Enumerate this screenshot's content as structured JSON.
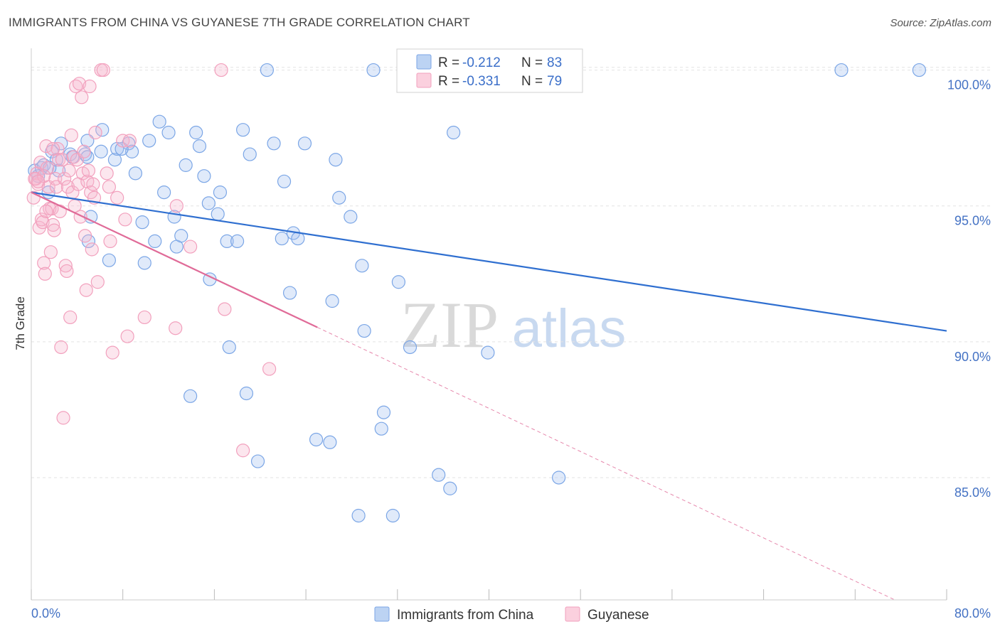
{
  "title": "IMMIGRANTS FROM CHINA VS GUYANESE 7TH GRADE CORRELATION CHART",
  "source": "Source: ZipAtlas.com",
  "watermark": {
    "zip": "ZIP",
    "atlas": "atlas"
  },
  "legend_top": [
    {
      "r_label": "R =",
      "r_value": "-0.212",
      "n_label": "N =",
      "n_value": "83",
      "color": "#7ba6e6"
    },
    {
      "r_label": "R =",
      "r_value": "-0.331",
      "n_label": "N =",
      "n_value": "79",
      "color": "#f2a0bd"
    }
  ],
  "legend_bottom": [
    {
      "label": "Immigrants from China",
      "color": "#7ba6e6"
    },
    {
      "label": "Guyanese",
      "color": "#f2a0bd"
    }
  ],
  "chart_data": {
    "type": "scatter",
    "title": "IMMIGRANTS FROM CHINA VS GUYANESE 7TH GRADE CORRELATION CHART",
    "xlabel": "",
    "ylabel": "7th Grade",
    "xlim": [
      0,
      80
    ],
    "ylim": [
      80.5,
      100.8
    ],
    "x_tick_labels": [
      "0.0%",
      "80.0%"
    ],
    "y_ticks": [
      85,
      90,
      95,
      100
    ],
    "y_tick_labels": [
      "85.0%",
      "90.0%",
      "95.0%",
      "100.0%"
    ],
    "grid": true,
    "legend_position": "top-center",
    "series": [
      {
        "name": "Immigrants from China",
        "color": "#7ba6e6",
        "line_color": "#2f6fd0",
        "trend": {
          "x": [
            0,
            80
          ],
          "y": [
            95.5,
            90.4
          ],
          "dashed_from": null
        },
        "points": [
          [
            0.3,
            96.3
          ],
          [
            0.6,
            96.1
          ],
          [
            0.9,
            96.4
          ],
          [
            1.1,
            96.5
          ],
          [
            1.5,
            95.5
          ],
          [
            1.8,
            97.0
          ],
          [
            2.2,
            96.7
          ],
          [
            2.6,
            97.3
          ],
          [
            2.4,
            96.3
          ],
          [
            3.4,
            96.9
          ],
          [
            3.6,
            96.8
          ],
          [
            4.7,
            96.9
          ],
          [
            4.9,
            97.4
          ],
          [
            5.2,
            94.6
          ],
          [
            6.1,
            97.0
          ],
          [
            6.2,
            97.8
          ],
          [
            6.8,
            93.0
          ],
          [
            7.3,
            96.7
          ],
          [
            7.5,
            97.1
          ],
          [
            8.5,
            97.3
          ],
          [
            8.8,
            97.0
          ],
          [
            9.1,
            96.2
          ],
          [
            9.7,
            94.4
          ],
          [
            9.9,
            92.9
          ],
          [
            10.3,
            97.4
          ],
          [
            10.8,
            93.7
          ],
          [
            11.2,
            98.1
          ],
          [
            11.6,
            95.5
          ],
          [
            12.0,
            97.7
          ],
          [
            12.5,
            94.6
          ],
          [
            12.7,
            93.5
          ],
          [
            13.1,
            93.9
          ],
          [
            13.5,
            96.5
          ],
          [
            13.9,
            88.0
          ],
          [
            14.4,
            97.7
          ],
          [
            14.7,
            97.2
          ],
          [
            15.1,
            96.1
          ],
          [
            15.5,
            95.1
          ],
          [
            15.6,
            92.3
          ],
          [
            16.3,
            94.7
          ],
          [
            16.5,
            95.5
          ],
          [
            17.1,
            93.7
          ],
          [
            17.3,
            89.8
          ],
          [
            18.0,
            93.7
          ],
          [
            18.5,
            97.8
          ],
          [
            18.8,
            88.1
          ],
          [
            19.1,
            96.9
          ],
          [
            19.8,
            85.6
          ],
          [
            20.6,
            100.0
          ],
          [
            21.2,
            97.3
          ],
          [
            21.9,
            93.8
          ],
          [
            22.1,
            95.9
          ],
          [
            22.6,
            91.8
          ],
          [
            22.9,
            94.0
          ],
          [
            23.3,
            93.8
          ],
          [
            23.9,
            97.3
          ],
          [
            24.9,
            86.4
          ],
          [
            26.1,
            86.3
          ],
          [
            26.3,
            91.5
          ],
          [
            26.6,
            96.7
          ],
          [
            26.9,
            95.3
          ],
          [
            27.9,
            94.6
          ],
          [
            28.6,
            83.6
          ],
          [
            28.9,
            92.8
          ],
          [
            29.1,
            90.4
          ],
          [
            29.9,
            100.0
          ],
          [
            30.6,
            86.8
          ],
          [
            30.8,
            87.4
          ],
          [
            31.6,
            83.6
          ],
          [
            32.1,
            92.2
          ],
          [
            33.1,
            89.8
          ],
          [
            35.6,
            85.1
          ],
          [
            36.3,
            100.0
          ],
          [
            36.6,
            84.6
          ],
          [
            36.9,
            97.7
          ],
          [
            39.9,
            89.6
          ],
          [
            46.1,
            85.0
          ],
          [
            70.8,
            100.0
          ],
          [
            77.6,
            100.0
          ],
          [
            4.9,
            96.8
          ],
          [
            7.9,
            97.1
          ],
          [
            5.0,
            93.7
          ],
          [
            1.6,
            96.4
          ]
        ]
      },
      {
        "name": "Guyanese",
        "color": "#f2a0bd",
        "line_color": "#e06b98",
        "trend": {
          "x": [
            0,
            80
          ],
          "y": [
            95.5,
            79.6
          ],
          "dashed_from": 25
        },
        "points": [
          [
            0.2,
            95.3
          ],
          [
            0.4,
            96.0
          ],
          [
            0.5,
            96.2
          ],
          [
            0.6,
            95.8
          ],
          [
            0.7,
            94.2
          ],
          [
            0.8,
            96.6
          ],
          [
            0.9,
            94.5
          ],
          [
            1.0,
            94.4
          ],
          [
            1.1,
            92.9
          ],
          [
            1.2,
            92.5
          ],
          [
            1.3,
            97.2
          ],
          [
            1.4,
            96.4
          ],
          [
            1.5,
            95.7
          ],
          [
            1.6,
            94.9
          ],
          [
            1.7,
            93.3
          ],
          [
            1.8,
            94.9
          ],
          [
            1.9,
            94.3
          ],
          [
            2.0,
            94.1
          ],
          [
            2.1,
            96.0
          ],
          [
            2.2,
            95.7
          ],
          [
            2.3,
            97.1
          ],
          [
            2.4,
            96.7
          ],
          [
            2.5,
            94.8
          ],
          [
            2.6,
            89.8
          ],
          [
            2.7,
            96.7
          ],
          [
            2.8,
            87.2
          ],
          [
            2.9,
            96.0
          ],
          [
            3.0,
            92.8
          ],
          [
            3.1,
            92.6
          ],
          [
            3.2,
            95.7
          ],
          [
            3.3,
            96.3
          ],
          [
            3.4,
            90.9
          ],
          [
            3.5,
            97.6
          ],
          [
            3.6,
            95.5
          ],
          [
            3.7,
            96.8
          ],
          [
            3.8,
            95.0
          ],
          [
            3.9,
            99.4
          ],
          [
            4.0,
            96.7
          ],
          [
            4.1,
            95.8
          ],
          [
            4.2,
            99.5
          ],
          [
            4.3,
            94.6
          ],
          [
            4.4,
            99.0
          ],
          [
            4.5,
            96.2
          ],
          [
            4.6,
            97.0
          ],
          [
            4.7,
            93.9
          ],
          [
            4.8,
            91.9
          ],
          [
            4.9,
            95.9
          ],
          [
            5.0,
            96.3
          ],
          [
            5.1,
            99.4
          ],
          [
            5.2,
            95.5
          ],
          [
            5.3,
            93.4
          ],
          [
            5.4,
            95.8
          ],
          [
            5.5,
            95.3
          ],
          [
            5.6,
            97.7
          ],
          [
            5.8,
            92.2
          ],
          [
            6.1,
            100.0
          ],
          [
            6.3,
            100.0
          ],
          [
            6.6,
            96.2
          ],
          [
            6.8,
            95.7
          ],
          [
            6.9,
            93.7
          ],
          [
            7.1,
            89.6
          ],
          [
            7.5,
            95.3
          ],
          [
            8.0,
            97.4
          ],
          [
            8.2,
            94.5
          ],
          [
            8.4,
            90.2
          ],
          [
            8.6,
            97.4
          ],
          [
            9.9,
            90.9
          ],
          [
            12.6,
            90.5
          ],
          [
            12.7,
            95.0
          ],
          [
            13.9,
            93.5
          ],
          [
            16.6,
            100.0
          ],
          [
            16.9,
            91.2
          ],
          [
            18.5,
            86.0
          ],
          [
            20.8,
            89.0
          ],
          [
            0.3,
            96.0
          ],
          [
            1.9,
            97.1
          ],
          [
            1.1,
            96.1
          ],
          [
            0.6,
            95.9
          ],
          [
            1.3,
            94.8
          ]
        ]
      }
    ]
  }
}
